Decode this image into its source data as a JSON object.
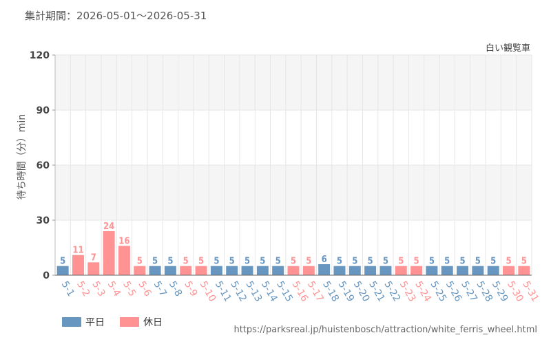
{
  "header": {
    "period_label": "集計期間：2026-05-01～2026-05-31"
  },
  "footer": {
    "source_url": "https://parksreal.jp/huistenbosch/attraction/white_ferris_wheel.html"
  },
  "colors": {
    "weekday": "#6796c0",
    "holiday": "#ff9393",
    "grid": "#e6e6e6",
    "band": "#f5f5f5"
  },
  "chart_data": {
    "type": "bar",
    "title": "白い観覧車",
    "xlabel": "",
    "ylabel": "待ち時間（分）min",
    "ylim": [
      0,
      120
    ],
    "yticks": [
      0,
      30,
      60,
      90,
      120
    ],
    "grid": true,
    "legend_position": "bottom-left",
    "categories": [
      "5-1",
      "5-2",
      "5-3",
      "5-4",
      "5-5",
      "5-6",
      "5-7",
      "5-8",
      "5-9",
      "5-10",
      "5-11",
      "5-12",
      "5-13",
      "5-14",
      "5-15",
      "5-16",
      "5-17",
      "5-18",
      "5-19",
      "5-20",
      "5-21",
      "5-22",
      "5-23",
      "5-24",
      "5-25",
      "5-26",
      "5-27",
      "5-28",
      "5-29",
      "5-30",
      "5-31"
    ],
    "values": [
      5,
      11,
      7,
      24,
      16,
      5,
      5,
      5,
      5,
      5,
      5,
      5,
      5,
      5,
      5,
      5,
      5,
      6,
      5,
      5,
      5,
      5,
      5,
      5,
      5,
      5,
      5,
      5,
      5,
      5,
      5
    ],
    "day_types": [
      "平日",
      "休日",
      "休日",
      "休日",
      "休日",
      "休日",
      "平日",
      "平日",
      "休日",
      "休日",
      "平日",
      "平日",
      "平日",
      "平日",
      "平日",
      "休日",
      "休日",
      "平日",
      "平日",
      "平日",
      "平日",
      "平日",
      "休日",
      "休日",
      "平日",
      "平日",
      "平日",
      "平日",
      "平日",
      "休日",
      "休日"
    ],
    "series": [
      {
        "name": "平日",
        "color": "#6796c0"
      },
      {
        "name": "休日",
        "color": "#ff9393"
      }
    ]
  }
}
